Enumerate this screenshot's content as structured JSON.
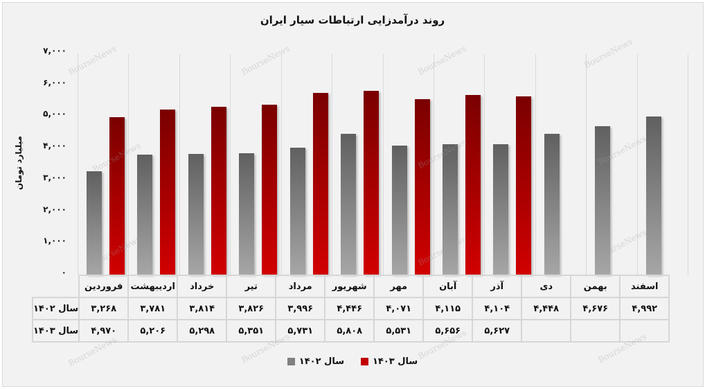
{
  "title": "روند درآمدزایی ارتباطات سیار ایران",
  "y_axis": {
    "label": "میلیارد تومان",
    "ticks": [
      "۷,۰۰۰",
      "۶,۰۰۰",
      "۵,۰۰۰",
      "۴,۰۰۰",
      "۳,۰۰۰",
      "۲,۰۰۰",
      "۱,۰۰۰",
      "۰"
    ]
  },
  "table": {
    "months": [
      "فروردین",
      "اردیبهشت",
      "خرداد",
      "تیر",
      "مرداد",
      "شهریور",
      "مهر",
      "آبان",
      "آذر",
      "دی",
      "بهمن",
      "اسفند"
    ],
    "rows": [
      {
        "label": "سال ۱۴۰۲",
        "values": [
          "۳,۲۶۸",
          "۳,۷۸۱",
          "۳,۸۱۴",
          "۳,۸۲۶",
          "۳,۹۹۶",
          "۴,۴۴۶",
          "۴,۰۷۱",
          "۴,۱۱۵",
          "۴,۱۰۴",
          "۴,۴۴۸",
          "۴,۶۷۶",
          "۴,۹۹۲"
        ]
      },
      {
        "label": "سال ۱۴۰۳",
        "values": [
          "۴,۹۷۰",
          "۵,۲۰۶",
          "۵,۲۹۸",
          "۵,۳۵۱",
          "۵,۷۳۱",
          "۵,۸۰۸",
          "۵,۵۳۱",
          "۵,۶۵۶",
          "۵,۶۲۷",
          "",
          "",
          ""
        ]
      }
    ]
  },
  "legend": [
    {
      "label": "سال ۱۴۰۳",
      "color": "#c00000"
    },
    {
      "label": "سال ۱۴۰۲",
      "color": "#808080"
    }
  ],
  "watermark": "BourseNews",
  "chart_data": {
    "type": "bar",
    "title": "روند درآمدزایی ارتباطات سیار ایران",
    "xlabel": "",
    "ylabel": "میلیارد تومان",
    "ylim": [
      0,
      7000
    ],
    "yticks": [
      0,
      1000,
      2000,
      3000,
      4000,
      5000,
      6000,
      7000
    ],
    "grid": "vertical category separators",
    "legend_position": "bottom",
    "categories": [
      "فروردین",
      "اردیبهشت",
      "خرداد",
      "تیر",
      "مرداد",
      "شهریور",
      "مهر",
      "آبان",
      "آذر",
      "دی",
      "بهمن",
      "اسفند"
    ],
    "series": [
      {
        "name": "سال ۱۴۰۲",
        "color": "#808080",
        "values": [
          3268,
          3781,
          3814,
          3826,
          3996,
          4446,
          4071,
          4115,
          4104,
          4448,
          4676,
          4992
        ]
      },
      {
        "name": "سال ۱۴۰۳",
        "color": "#c00000",
        "values": [
          4970,
          5206,
          5298,
          5351,
          5731,
          5808,
          5531,
          5656,
          5627,
          null,
          null,
          null
        ]
      }
    ]
  }
}
